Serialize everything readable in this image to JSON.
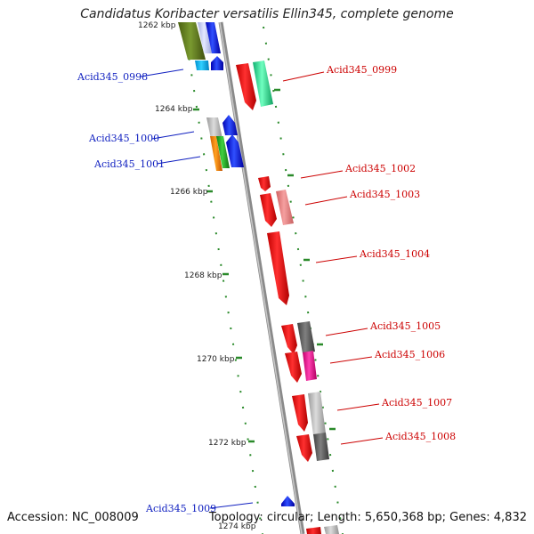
{
  "title": "Candidatus Koribacter versatilis Ellin345, complete genome",
  "footer": {
    "accession": "Accession: NC_008009",
    "summary": "Topology: circular; Length: 5,650,368 bp; Genes: 4,832"
  },
  "colors": {
    "backbone": "#8a8a8a",
    "tick": "#2a8a2a",
    "label_left": "#1020c0",
    "label_right": "#cc0000"
  },
  "kbp_labels": [
    "1262 kbp",
    "1264 kbp",
    "1266 kbp",
    "1268 kbp",
    "1270 kbp",
    "1272 kbp",
    "1274 kbp"
  ],
  "gene_labels_left": [
    "Acid345_0998",
    "Acid345_1000",
    "Acid345_1001",
    "Acid345_1009"
  ],
  "gene_labels_right": [
    "Acid345_0999",
    "Acid345_1002",
    "Acid345_1003",
    "Acid345_1004",
    "Acid345_1005",
    "Acid345_1006",
    "Acid345_1007",
    "Acid345_1008"
  ]
}
